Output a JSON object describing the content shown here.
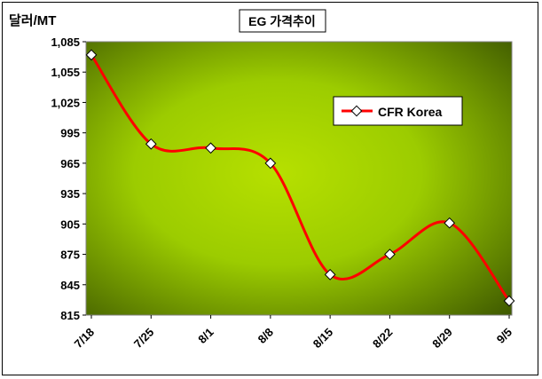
{
  "chart_data": {
    "type": "line",
    "title": "EG 가격추이",
    "ylabel": "달러/MT",
    "xlabel": "",
    "categories": [
      "7/18",
      "7/25",
      "8/1",
      "8/8",
      "8/15",
      "8/22",
      "8/29",
      "9/5"
    ],
    "series": [
      {
        "name": "CFR Korea",
        "values": [
          1072,
          984,
          980,
          965,
          855,
          875,
          906,
          829
        ]
      }
    ],
    "yticks": [
      815,
      845,
      875,
      905,
      935,
      965,
      995,
      "1,025",
      "1,055",
      "1,085"
    ],
    "ylim": [
      815,
      1085
    ],
    "legend_position": "top-right",
    "grid": false,
    "colors": {
      "line": "#ff0000",
      "marker_fill": "#ffffff",
      "plot_light": "#a6d400",
      "plot_dark": "#3f5a00"
    }
  }
}
